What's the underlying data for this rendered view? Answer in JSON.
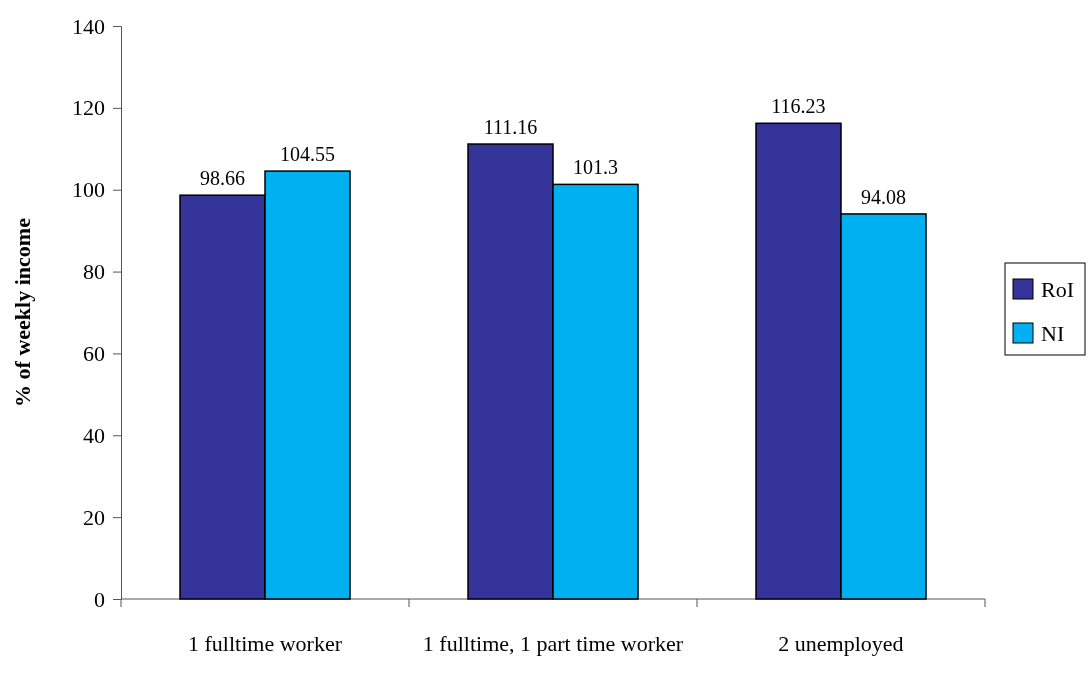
{
  "chart_data": {
    "type": "bar",
    "ylabel": "% of weekly income",
    "categories": [
      "1 fulltime worker",
      "1 fulltime, 1 part time worker",
      "2 unemployed"
    ],
    "series": [
      {
        "name": "RoI",
        "color": "#333399",
        "values": [
          98.66,
          111.16,
          116.23
        ]
      },
      {
        "name": "NI",
        "color": "#00b0f0",
        "values": [
          104.55,
          101.3,
          94.08
        ]
      }
    ],
    "ylim": [
      0,
      140
    ],
    "yticks": [
      0,
      20,
      40,
      60,
      80,
      100,
      120,
      140
    ],
    "data_labels": true,
    "legend": "right"
  }
}
